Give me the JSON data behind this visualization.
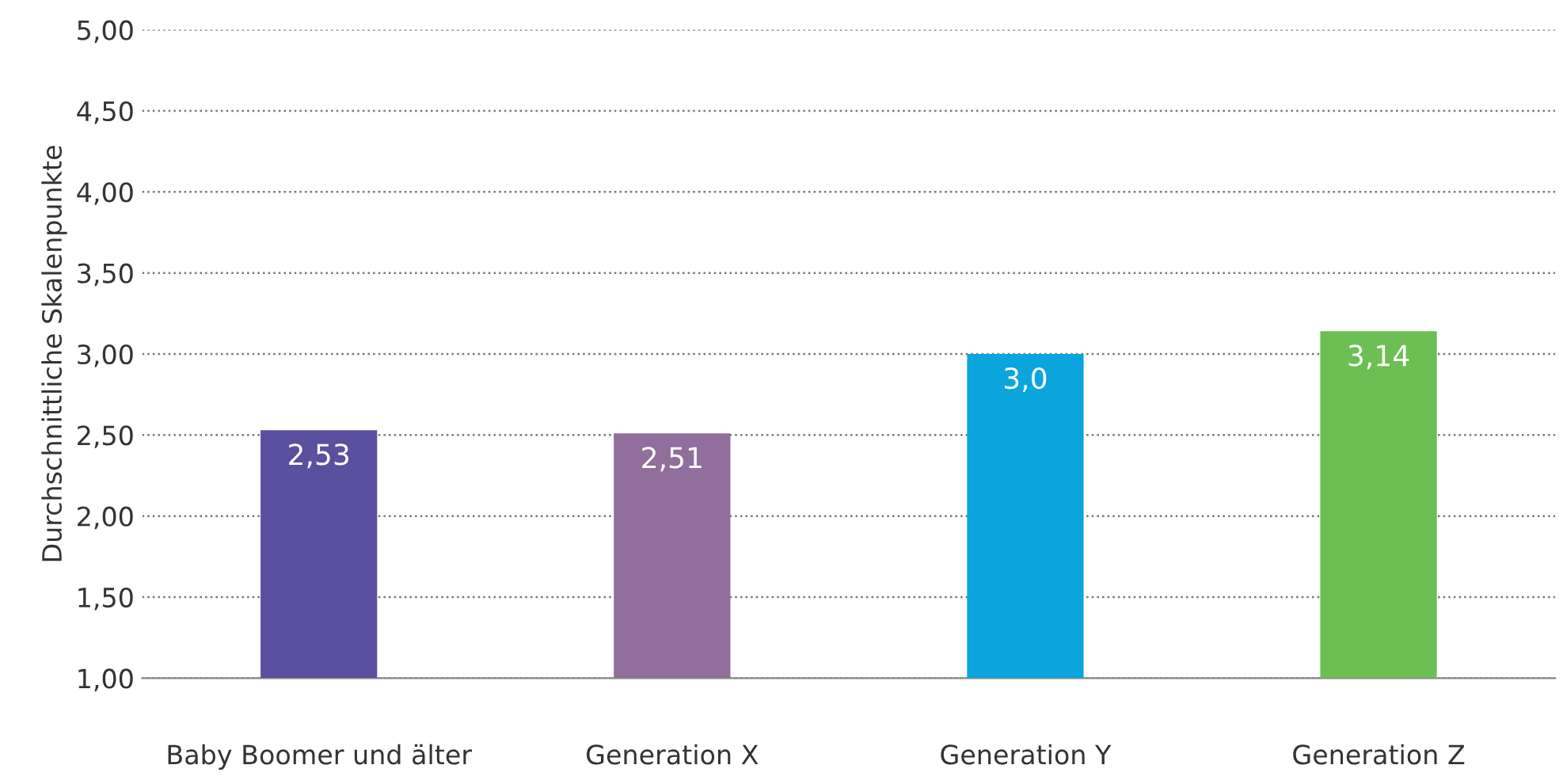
{
  "chart_data": {
    "type": "bar",
    "ylabel": "Durchschnittliche Skalenpunkte",
    "categories": [
      "Baby Boomer und älter",
      "Generation X",
      "Generation Y",
      "Generation Z"
    ],
    "values": [
      2.53,
      2.51,
      3.0,
      3.14
    ],
    "colors": [
      "#5b4f9f",
      "#916e9b",
      "#0aa5dc",
      "#6cbf52"
    ],
    "value_labels": [
      "2,53",
      "2,51",
      "3,0",
      "3,14"
    ],
    "ylim": [
      1,
      5
    ],
    "yticks": [
      {
        "value": 1,
        "label": "1,00"
      },
      {
        "value": 1.5,
        "label": "1,50"
      },
      {
        "value": 2,
        "label": "2,00"
      },
      {
        "value": 2.5,
        "label": "2,50"
      },
      {
        "value": 3,
        "label": "3,00"
      },
      {
        "value": 3.5,
        "label": "3,50"
      },
      {
        "value": 4,
        "label": "4,00"
      },
      {
        "value": 4.5,
        "label": "4,50"
      },
      {
        "value": 5,
        "label": "5,00"
      }
    ],
    "grid": "y",
    "legend": false
  }
}
